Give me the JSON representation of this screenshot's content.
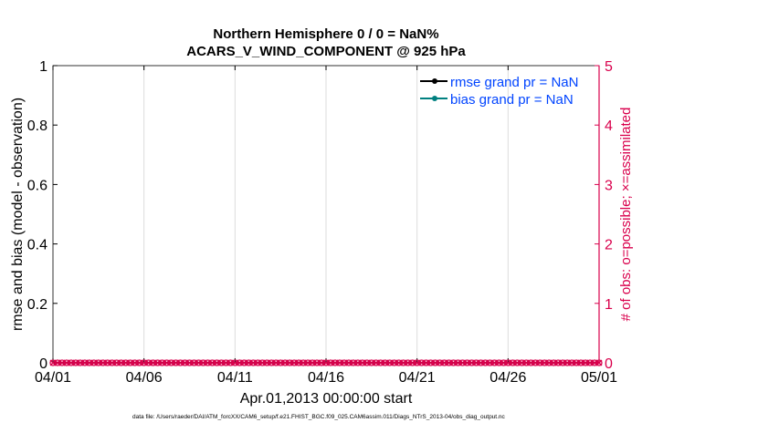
{
  "chart_data": {
    "type": "line",
    "title": [
      "Northern Hemisphere 0 / 0 = NaN%",
      "ACARS_V_WIND_COMPONENT @ 925 hPa"
    ],
    "xlabel": "Apr.01,2013 00:00:00 start",
    "ylabel": "rmse and bias (model - observation)",
    "ylabel_right": "# of obs: o=possible; ×=assimilated",
    "x_ticks": [
      "04/01",
      "04/06",
      "04/11",
      "04/16",
      "04/21",
      "04/26",
      "05/01"
    ],
    "x_tick_days": [
      0,
      5,
      10,
      15,
      20,
      25,
      30
    ],
    "xlim_days": [
      0,
      30
    ],
    "y_ticks": [
      "0",
      "0.2",
      "0.4",
      "0.6",
      "0.8",
      "1"
    ],
    "ylim": [
      0,
      1
    ],
    "y_right_ticks": [
      "0",
      "1",
      "2",
      "3",
      "4",
      "5"
    ],
    "ylim_right": [
      0,
      5
    ],
    "grid": true,
    "legend_placement": "top-right",
    "series": [
      {
        "name": "rmse grand pr = NaN",
        "color": "#000000",
        "values": []
      },
      {
        "name": "bias grand pr = NaN",
        "color": "#008080",
        "values": []
      },
      {
        "axis": "right",
        "color": "#d9004c",
        "marker": "o and ×",
        "interval_days": 0.25,
        "value": 0
      }
    ],
    "legend_text_color": "#0044ff",
    "right_axis_color": "#d9004c"
  },
  "footer": "data file: /Users/raeder/DAI/ATM_forcXX/CAM6_setup/f.e21.FHIST_BGC.f09_025.CAM6assim.011/Diags_NTrS_2013-04/obs_diag_output.nc"
}
